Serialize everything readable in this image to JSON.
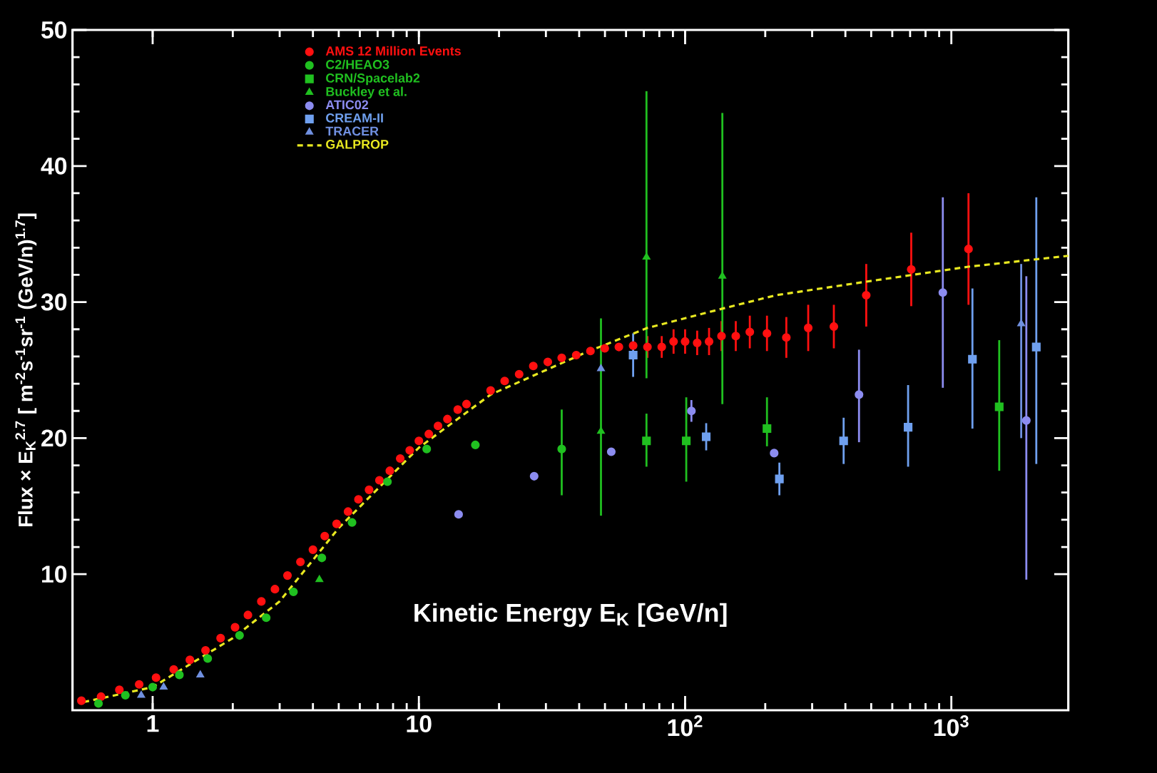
{
  "chart_data": {
    "type": "scatter",
    "xlabel": "Kinetic Energy E$_{K}$ [GeV/n]",
    "ylabel": "Flux × E$_{K}$$^{2.7}$ [ m$^{-2}$s$^{-1}$sr$^{-1}$ (GeV/n)$^{1.7}$]",
    "log": "x",
    "xlim": [
      0.5,
      2750
    ],
    "ylim": [
      0,
      50
    ],
    "xticks": [
      1,
      10,
      {
        "value": 100,
        "label": "10$^{2}$"
      },
      {
        "value": 1000,
        "label": "10$^{3}$"
      }
    ],
    "yticks": [
      10,
      20,
      30,
      40,
      50
    ],
    "legend": "top",
    "series": [
      {
        "name": "AMS 12 Million Events",
        "color": "#ff1010",
        "marker": "circle",
        "x": [
          0.54,
          0.64,
          0.75,
          0.89,
          1.03,
          1.2,
          1.38,
          1.58,
          1.8,
          2.04,
          2.28,
          2.56,
          2.88,
          3.21,
          3.59,
          4.0,
          4.43,
          4.91,
          5.42,
          5.93,
          6.5,
          7.11,
          7.78,
          8.51,
          9.24,
          10.0,
          10.9,
          11.8,
          12.8,
          14.0,
          15.1,
          18.6,
          21.0,
          23.8,
          26.9,
          30.5,
          34.4,
          39.0,
          44.1,
          49.9,
          56.4,
          63.8,
          72.2,
          81.7,
          90.5,
          100,
          111,
          123,
          137,
          155,
          175,
          203,
          240,
          290,
          362,
          479,
          707,
          1160
        ],
        "values": [
          0.7,
          1.0,
          1.5,
          1.9,
          2.4,
          3.0,
          3.7,
          4.4,
          5.3,
          6.1,
          7.0,
          8.0,
          8.9,
          9.9,
          10.9,
          11.8,
          12.8,
          13.7,
          14.6,
          15.5,
          16.2,
          16.9,
          17.6,
          18.5,
          19.1,
          19.8,
          20.3,
          20.9,
          21.4,
          22.1,
          22.5,
          23.5,
          24.2,
          24.7,
          25.3,
          25.6,
          25.9,
          26.1,
          26.4,
          26.6,
          26.7,
          26.8,
          26.7,
          26.7,
          27.1,
          27.1,
          27.0,
          27.1,
          27.5,
          27.5,
          27.8,
          27.7,
          27.4,
          28.1,
          28.2,
          30.5,
          32.4,
          33.9
        ],
        "errors": [
          null,
          null,
          null,
          null,
          null,
          null,
          null,
          null,
          null,
          null,
          null,
          null,
          null,
          null,
          null,
          null,
          null,
          null,
          null,
          null,
          null,
          null,
          null,
          null,
          null,
          null,
          null,
          null,
          null,
          null,
          null,
          null,
          null,
          null,
          null,
          null,
          null,
          null,
          null,
          null,
          null,
          null,
          0.8,
          0.8,
          0.9,
          0.9,
          0.9,
          1.0,
          1.1,
          1.1,
          1.2,
          1.3,
          1.5,
          1.7,
          1.6,
          2.3,
          2.7,
          4.1
        ]
      },
      {
        "name": "C2/HEAO3",
        "color": "#20c020",
        "marker": "circle",
        "x": [
          0.626,
          0.79,
          1.0,
          1.26,
          1.61,
          2.12,
          2.67,
          3.38,
          4.32,
          5.61,
          7.62,
          10.7,
          16.3,
          34.4
        ],
        "values": [
          0.5,
          1.1,
          1.7,
          2.6,
          3.8,
          5.5,
          6.8,
          8.7,
          11.2,
          13.8,
          16.8,
          19.2,
          19.5,
          19.2
        ],
        "errors": [
          null,
          null,
          null,
          null,
          null,
          null,
          null,
          null,
          null,
          null,
          null,
          null,
          null,
          [
            15.8,
            22.1
          ]
        ]
      },
      {
        "name": "CRN/Spacelab2",
        "color": "#20c020",
        "marker": "square",
        "x": [
          71.6,
          101,
          203,
          1513
        ],
        "values": [
          19.8,
          19.8,
          20.7,
          22.3
        ],
        "errors": [
          [
            17.9,
            21.8
          ],
          [
            16.8,
            23.0
          ],
          [
            19.4,
            23.0
          ],
          [
            17.6,
            27.2
          ]
        ]
      },
      {
        "name": "Buckley et al.",
        "color": "#20c020",
        "marker": "triangle",
        "x": [
          4.23,
          48.3,
          71.6,
          138
        ],
        "values": [
          9.6,
          20.5,
          33.3,
          31.9
        ],
        "errors": [
          null,
          [
            14.3,
            28.8
          ],
          [
            24.4,
            45.5
          ],
          [
            22.5,
            43.9
          ]
        ]
      },
      {
        "name": "ATIC02",
        "color": "#8c8cf0",
        "marker": "circle",
        "x": [
          14.1,
          27.1,
          52.8,
          105.6,
          216,
          450,
          929,
          1913
        ],
        "values": [
          14.4,
          17.2,
          19.0,
          22.0,
          18.9,
          23.2,
          30.7,
          21.3
        ],
        "errors": [
          null,
          null,
          null,
          0.8,
          null,
          [
            19.7,
            26.5
          ],
          [
            23.7,
            37.7
          ],
          [
            9.6,
            31.9
          ]
        ]
      },
      {
        "name": "CREAM-II",
        "color": "#6fa0ef",
        "marker": "square",
        "x": [
          63.8,
          120,
          226,
          394,
          688,
          1200,
          2085
        ],
        "values": [
          26.1,
          20.1,
          17.0,
          19.8,
          20.8,
          25.8,
          26.7
        ],
        "errors": [
          1.6,
          1.0,
          1.2,
          1.7,
          [
            17.9,
            23.9
          ],
          [
            20.7,
            31.0
          ],
          [
            18.1,
            37.7
          ]
        ]
      },
      {
        "name": "TRACER",
        "color": "#7090e0",
        "marker": "triangle",
        "x": [
          0.906,
          1.1,
          1.51,
          48.3,
          1830
        ],
        "values": [
          1.1,
          1.7,
          2.6,
          25.1,
          28.4
        ],
        "errors": [
          null,
          null,
          null,
          null,
          [
            20.0,
            32.8
          ]
        ]
      },
      {
        "name": "GALPROP",
        "color": "#e8e820",
        "type": "line",
        "line_style": "dashed",
        "marker": "none",
        "x": [
          0.55,
          1,
          2,
          3,
          5,
          10,
          18.6,
          42.4,
          72.2,
          137,
          219,
          479,
          1160,
          2750
        ],
        "values": [
          0.6,
          1.7,
          5.3,
          8.0,
          13.4,
          19.3,
          23.2,
          26.3,
          28.1,
          29.5,
          30.5,
          31.5,
          32.6,
          33.4
        ]
      }
    ]
  }
}
